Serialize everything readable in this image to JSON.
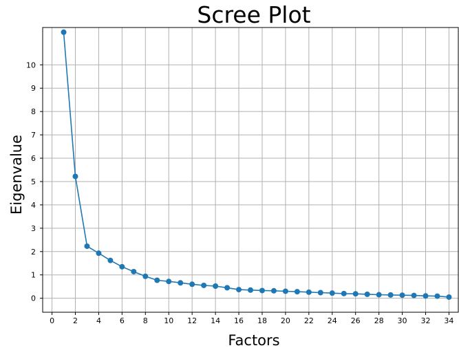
{
  "chart_data": {
    "type": "line",
    "title": "Scree Plot",
    "xlabel": "Factors",
    "ylabel": "Eigenvalue",
    "xlim": [
      -0.8,
      34.8
    ],
    "ylim": [
      -0.6,
      11.6
    ],
    "xticks": [
      0,
      2,
      4,
      6,
      8,
      10,
      12,
      14,
      16,
      18,
      20,
      22,
      24,
      26,
      28,
      30,
      32,
      34
    ],
    "yticks": [
      0,
      1,
      2,
      3,
      4,
      5,
      6,
      7,
      8,
      9,
      10
    ],
    "grid": true,
    "marker": "circle",
    "color": "#1f77b4",
    "series": [
      {
        "x": [
          1,
          2,
          3,
          4,
          5,
          6,
          7,
          8,
          9,
          10,
          11,
          12,
          13,
          14,
          15,
          16,
          17,
          18,
          19,
          20,
          21,
          22,
          23,
          24,
          25,
          26,
          27,
          28,
          29,
          30,
          31,
          32,
          33,
          34
        ],
        "y": [
          11.4,
          5.22,
          2.23,
          1.93,
          1.62,
          1.35,
          1.14,
          0.94,
          0.77,
          0.72,
          0.66,
          0.6,
          0.55,
          0.52,
          0.45,
          0.37,
          0.35,
          0.33,
          0.32,
          0.3,
          0.28,
          0.26,
          0.24,
          0.22,
          0.2,
          0.19,
          0.17,
          0.15,
          0.14,
          0.13,
          0.12,
          0.1,
          0.09,
          0.05
        ]
      }
    ]
  }
}
